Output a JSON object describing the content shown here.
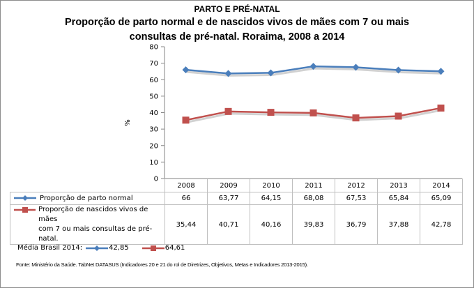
{
  "header": {
    "supertitle": "PARTO E PRÉ-NATAL",
    "title_line1": "Proporção de parto normal e de nascidos vivos de mães com 7 ou mais",
    "title_line2": "consultas de pré-natal. Roraima, 2008 a 2014"
  },
  "colors": {
    "series1": "#4a7ebb",
    "series2": "#c0504d",
    "grid": "#bfbfbf"
  },
  "chart_data": {
    "type": "line",
    "title": "Proporção de parto normal e de nascidos vivos de mães com 7 ou mais consultas de pré-natal. Roraima, 2008 a 2014",
    "xlabel": "",
    "ylabel": "%",
    "ylim": [
      0,
      80
    ],
    "yticks": [
      "0",
      "10",
      "20",
      "30",
      "40",
      "50",
      "60",
      "70",
      "80"
    ],
    "categories": [
      "2008",
      "2009",
      "2010",
      "2011",
      "2012",
      "2013",
      "2014"
    ],
    "grid": false,
    "legend": "data-table-bottom",
    "series": [
      {
        "name": "Proporção de parto normal",
        "marker": "diamond",
        "values": [
          66,
          63.77,
          64.15,
          68.08,
          67.53,
          65.84,
          65.09
        ],
        "labels": [
          "66",
          "63,77",
          "64,15",
          "68,08",
          "67,53",
          "65,84",
          "65,09"
        ]
      },
      {
        "name_line1": "Proporção de nascidos vivos de mães",
        "name_line2": "com 7 ou mais consultas de pré-natal.",
        "name": "Proporção de nascidos vivos de mães com 7 ou mais consultas de pré-natal.",
        "marker": "square",
        "values": [
          35.44,
          40.71,
          40.16,
          39.83,
          36.79,
          37.88,
          42.78
        ],
        "labels": [
          "35,44",
          "40,71",
          "40,16",
          "39,83",
          "36,79",
          "37,88",
          "42,78"
        ]
      }
    ]
  },
  "media": {
    "label": "Média Brasil 2014:",
    "value1": "42,85",
    "value2": "64,61"
  },
  "source": "Fonte: Ministério da Saúde. TabNet DATASUS (Indicadores 20 e 21 do rol de Diretrizes, Objetivos, Metas e Indicadores 2013-2015)."
}
